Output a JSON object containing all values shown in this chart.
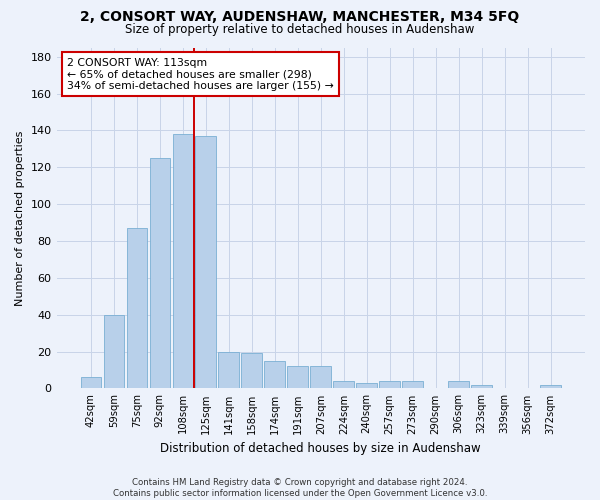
{
  "title": "2, CONSORT WAY, AUDENSHAW, MANCHESTER, M34 5FQ",
  "subtitle": "Size of property relative to detached houses in Audenshaw",
  "xlabel": "Distribution of detached houses by size in Audenshaw",
  "ylabel": "Number of detached properties",
  "bar_labels": [
    "42sqm",
    "59sqm",
    "75sqm",
    "92sqm",
    "108sqm",
    "125sqm",
    "141sqm",
    "158sqm",
    "174sqm",
    "191sqm",
    "207sqm",
    "224sqm",
    "240sqm",
    "257sqm",
    "273sqm",
    "290sqm",
    "306sqm",
    "323sqm",
    "339sqm",
    "356sqm",
    "372sqm"
  ],
  "bar_values": [
    6,
    40,
    87,
    125,
    138,
    137,
    20,
    19,
    15,
    12,
    12,
    4,
    3,
    4,
    4,
    0,
    4,
    2,
    0,
    0,
    2
  ],
  "bar_color": "#b8d0ea",
  "bar_edge_color": "#7aafd4",
  "vline_x": 4.5,
  "vline_color": "#cc0000",
  "annotation_text": "2 CONSORT WAY: 113sqm\n← 65% of detached houses are smaller (298)\n34% of semi-detached houses are larger (155) →",
  "annotation_box_color": "#ffffff",
  "annotation_box_edge": "#cc0000",
  "ylim": [
    0,
    185
  ],
  "yticks": [
    0,
    20,
    40,
    60,
    80,
    100,
    120,
    140,
    160,
    180
  ],
  "grid_color": "#c8d4e8",
  "footnote": "Contains HM Land Registry data © Crown copyright and database right 2024.\nContains public sector information licensed under the Open Government Licence v3.0.",
  "bg_color": "#edf2fb",
  "title_fontsize": 10,
  "subtitle_fontsize": 8.5
}
